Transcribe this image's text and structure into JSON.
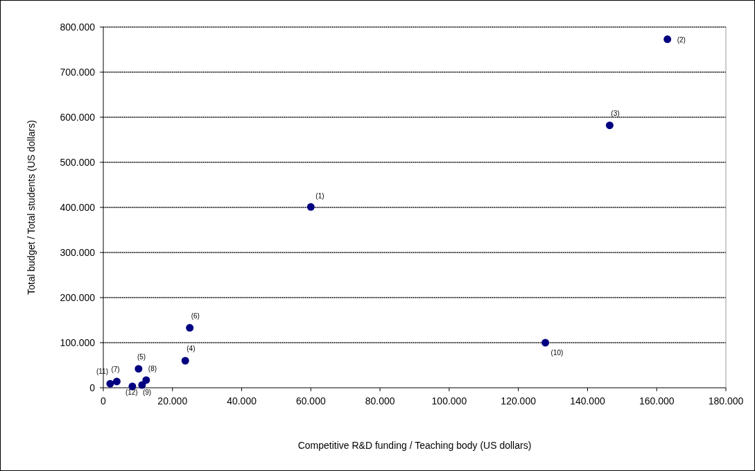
{
  "chart_data": {
    "type": "scatter",
    "xlabel": "Competitive R&D funding / Teaching body (US dollars)",
    "ylabel": "Total budget / Total students (US dollars)",
    "x": [
      60000,
      163100,
      146400,
      23700,
      10200,
      25000,
      3900,
      12400,
      11200,
      127800,
      2000,
      8400
    ],
    "values": [
      401000,
      773000,
      582000,
      60000,
      42000,
      133000,
      14000,
      17000,
      6000,
      100000,
      9000,
      3000
    ],
    "color": "#000080",
    "marker": "circle",
    "xlim": [
      0,
      180000
    ],
    "xticks": [
      0,
      {
        "value": 20000,
        "label": "20.000"
      },
      {
        "value": 40000,
        "label": "40.000"
      },
      {
        "value": 60000,
        "label": "60.000"
      },
      {
        "value": 80000,
        "label": "80.000"
      },
      {
        "value": 100000,
        "label": "100.000"
      },
      {
        "value": 120000,
        "label": "120.000"
      },
      {
        "value": 140000,
        "label": "140.000"
      },
      {
        "value": 160000,
        "label": "160.000"
      },
      {
        "value": 180000,
        "label": "180.000"
      }
    ],
    "ylim": [
      0,
      800000
    ],
    "yticks": [
      0,
      {
        "value": 100000,
        "label": "100.000"
      },
      {
        "value": 200000,
        "label": "200.000"
      },
      {
        "value": 300000,
        "label": "300.000"
      },
      {
        "value": 400000,
        "label": "400.000"
      },
      {
        "value": 500000,
        "label": "500.000"
      },
      {
        "value": 600000,
        "label": "600.000"
      },
      {
        "value": 700000,
        "label": "700.000"
      },
      {
        "value": 800000,
        "label": "800.000"
      }
    ],
    "grid": "y",
    "annotations": [
      {
        "text": "(1)",
        "x": 60000,
        "y": 401000
      },
      {
        "text": "(2)",
        "x": 163100,
        "y": 773000
      },
      {
        "text": "(3)",
        "x": 146400,
        "y": 582000
      },
      {
        "text": "(4)",
        "x": 23700,
        "y": 60000
      },
      {
        "text": "(5)",
        "x": 10200,
        "y": 42000
      },
      {
        "text": "(6)",
        "x": 25000,
        "y": 133000
      },
      {
        "text": "(7)",
        "x": 3900,
        "y": 14000
      },
      {
        "text": "(8)",
        "x": 12400,
        "y": 17000
      },
      {
        "text": "(9)",
        "x": 11200,
        "y": 6000
      },
      {
        "text": "(10)",
        "x": 127800,
        "y": 100000
      },
      {
        "text": "(11)",
        "x": 2000,
        "y": 9000
      },
      {
        "text": "(12)",
        "x": 8400,
        "y": 3000
      }
    ]
  }
}
